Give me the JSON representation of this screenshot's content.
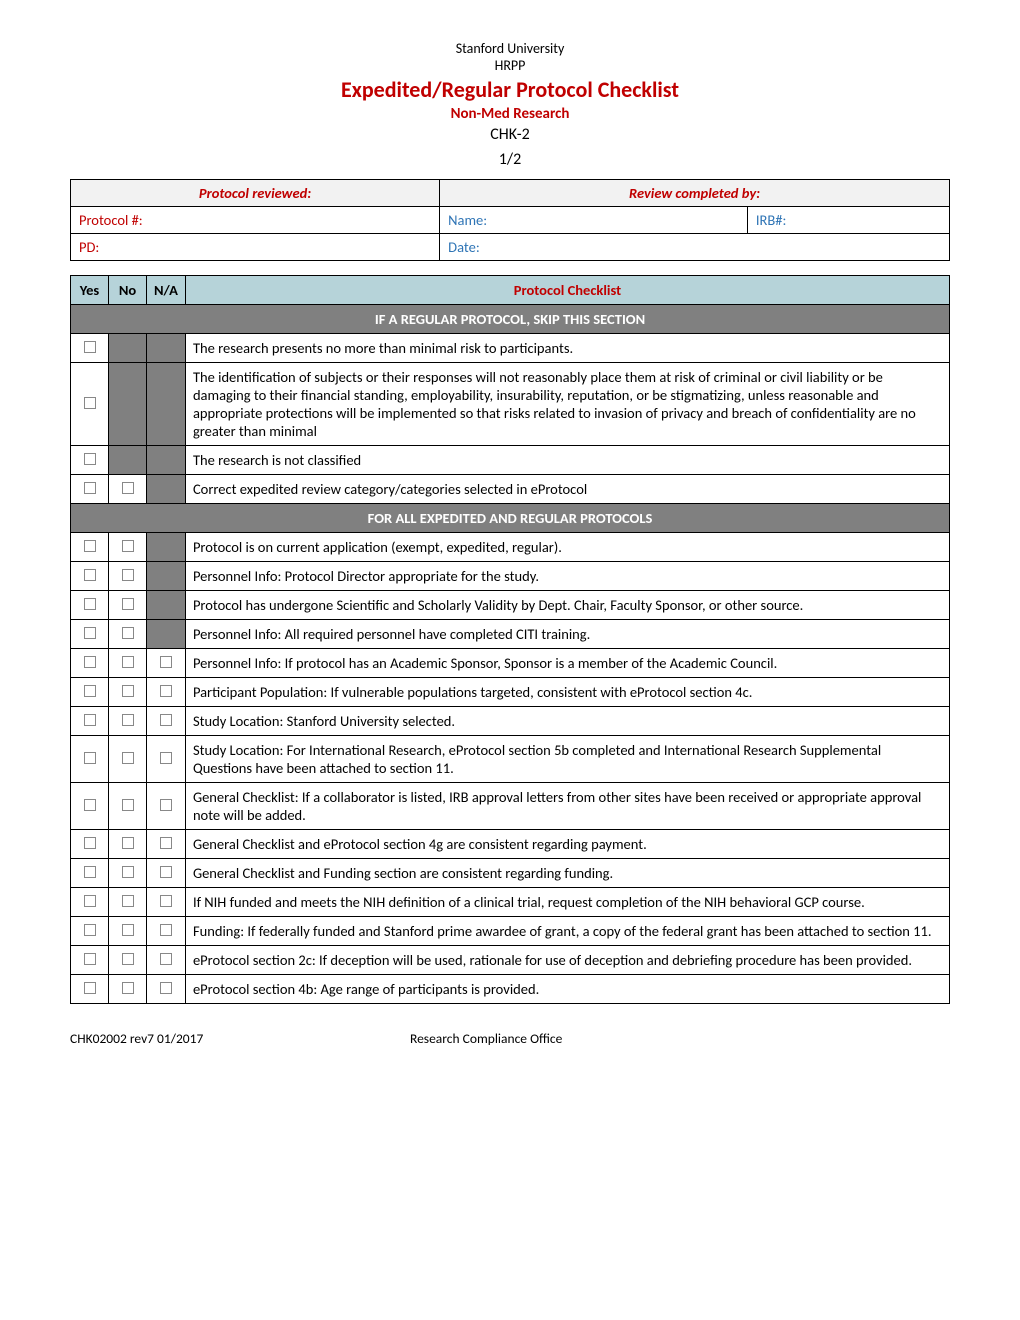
{
  "header": {
    "university": "Stanford University",
    "hrpp": "HRPP",
    "title": "Expedited/Regular Protocol Checklist",
    "subtitle": "Non-Med Research",
    "code": "CHK-2",
    "page": "1/2"
  },
  "info": {
    "protocol_reviewed": "Protocol reviewed:",
    "review_completed_by": "Review completed by:",
    "protocol_num_label": "Protocol #:",
    "name_label": "Name:",
    "irb_label": "IRB#:",
    "pd_label": "PD:",
    "date_label": "Date:"
  },
  "checklist": {
    "col_yes": "Yes",
    "col_no": "No",
    "col_na": "N/A",
    "title": "Protocol Checklist",
    "section1": "IF A REGULAR PROTOCOL, SKIP THIS SECTION",
    "section2": "FOR ALL EXPEDITED AND REGULAR PROTOCOLS",
    "rows": [
      {
        "yes": true,
        "no": "gray",
        "na": "gray",
        "text": "The research presents no more than minimal risk to participants."
      },
      {
        "yes": true,
        "no": "gray",
        "na": "gray",
        "text": "The identification of subjects or their responses will not reasonably place them at risk of criminal or civil liability or be damaging to their financial standing, employability, insurability, reputation, or be stigmatizing, unless reasonable and appropriate protections will be implemented so that risks related to invasion of privacy and breach of confidentiality are no greater than minimal"
      },
      {
        "yes": true,
        "no": "gray",
        "na": "gray",
        "text": "The research is not classified"
      },
      {
        "yes": true,
        "no": true,
        "na": "gray",
        "text": "Correct expedited review category/categories selected in eProtocol"
      }
    ],
    "rows2": [
      {
        "yes": true,
        "no": true,
        "na": "gray",
        "text": "Protocol is on current application (exempt, expedited, regular)."
      },
      {
        "yes": true,
        "no": true,
        "na": "gray",
        "text": "Personnel Info:  Protocol Director appropriate for the study."
      },
      {
        "yes": true,
        "no": true,
        "na": "gray",
        "text": "Protocol has undergone Scientific and Scholarly Validity by Dept. Chair, Faculty Sponsor, or other source."
      },
      {
        "yes": true,
        "no": true,
        "na": "gray",
        "text": "Personnel Info:  All required personnel have completed CITI training."
      },
      {
        "yes": true,
        "no": true,
        "na": true,
        "text": "Personnel Info:  If protocol has an Academic Sponsor, Sponsor is a member of the Academic Council."
      },
      {
        "yes": true,
        "no": true,
        "na": true,
        "text": "Participant Population:  If vulnerable populations targeted, consistent with eProtocol section 4c."
      },
      {
        "yes": true,
        "no": true,
        "na": true,
        "text": "Study Location:  Stanford University selected."
      },
      {
        "yes": true,
        "no": true,
        "na": true,
        "text": "Study Location:  For International Research, eProtocol section 5b completed and International Research Supplemental Questions have been attached to section 11."
      },
      {
        "yes": true,
        "no": true,
        "na": true,
        "text": "General Checklist:   If a collaborator is listed, IRB approval letters from other sites have been received or appropriate approval note will be added."
      },
      {
        "yes": true,
        "no": true,
        "na": true,
        "text": "General Checklist and eProtocol section 4g are consistent regarding payment."
      },
      {
        "yes": true,
        "no": true,
        "na": true,
        "text": "General Checklist and Funding section are consistent regarding funding."
      },
      {
        "yes": true,
        "no": true,
        "na": true,
        "text": "If NIH funded and meets the NIH definition of a clinical trial, request completion of the NIH behavioral GCP course."
      },
      {
        "yes": true,
        "no": true,
        "na": true,
        "text": "Funding: If federally funded and Stanford prime awardee of grant, a copy of the federal grant has been attached to section 11."
      },
      {
        "yes": true,
        "no": true,
        "na": true,
        "text": "eProtocol section 2c:  If deception will be used, rationale for use of deception and debriefing procedure has been provided."
      },
      {
        "yes": true,
        "no": true,
        "na": true,
        "text": "eProtocol section 4b:  Age range of participants is provided."
      }
    ]
  },
  "footer": {
    "left": "CHK02002    rev7   01/2017",
    "center": "Research Compliance Office"
  },
  "colors": {
    "red": "#c00000",
    "blue": "#2e74b5",
    "header_bg": "#b6d3d9",
    "gray": "#808080",
    "lightgray": "#f2f2f2"
  }
}
